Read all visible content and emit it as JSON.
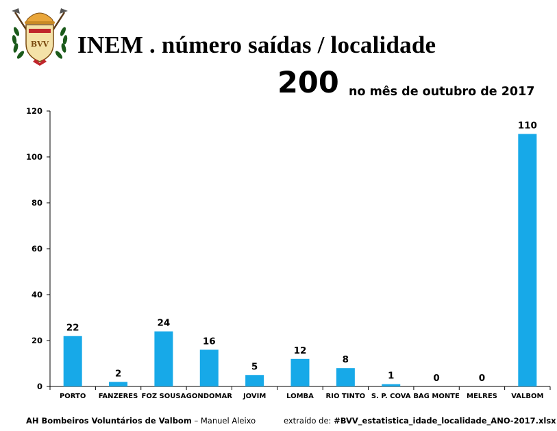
{
  "header": {
    "title": "INEM . número saídas / localidade",
    "total": "200",
    "subtitle": "no mês de outubro de 2017"
  },
  "logo": {
    "text": "BVV",
    "icon": "firefighter-crest-icon"
  },
  "footer": {
    "org": "AH Bombeiros Voluntários de Valbom",
    "separator": " – ",
    "author": "Manuel Aleixo",
    "source_prefix": "extraído de: ",
    "source_file": "#BVV_estatistica_idade_localidade_ANO-2017.xlsx"
  },
  "chart_data": {
    "type": "bar",
    "categories": [
      "PORTO",
      "FANZERES",
      "FOZ SOUSA",
      "GONDOMAR",
      "JOVIM",
      "LOMBA",
      "RIO TINTO",
      "S. P. COVA",
      "BAG MONTE",
      "MELRES",
      "VALBOM"
    ],
    "values": [
      22,
      2,
      24,
      16,
      5,
      12,
      8,
      1,
      0,
      0,
      110
    ],
    "ylim": [
      0,
      120
    ],
    "yticks": [
      0,
      20,
      40,
      60,
      80,
      100,
      120
    ],
    "grid": false,
    "bar_color": "#17a9e8"
  }
}
